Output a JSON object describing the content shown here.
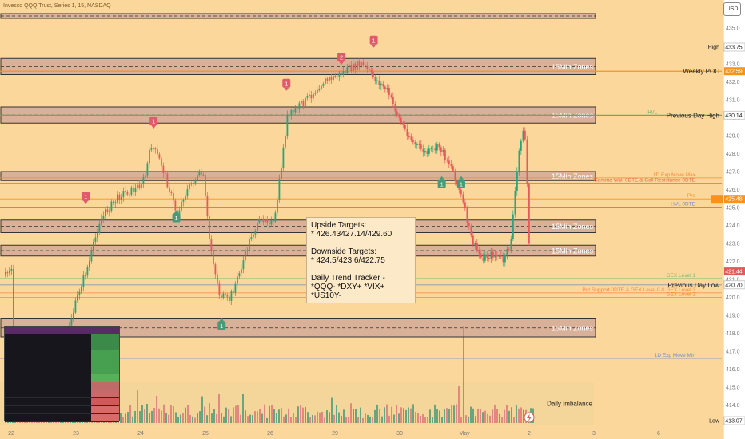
{
  "header": {
    "symbol_title": "Invesco QQQ Trust, Series 1, 15, NASDAQ",
    "currency_button": "USD"
  },
  "chart_data": {
    "type": "candlestick",
    "symbol": "QQQ",
    "interval": "15",
    "ylim": [
      412.9,
      435.6
    ],
    "y_ticks": [
      413,
      414,
      415,
      416,
      417,
      418,
      419,
      420,
      421,
      422,
      423,
      424,
      425,
      426,
      427,
      428,
      429,
      430,
      431,
      432,
      433,
      434,
      435
    ],
    "x_ticks": [
      {
        "label": "22",
        "x": 0
      },
      {
        "label": "23",
        "x": 1
      },
      {
        "label": "24",
        "x": 2
      },
      {
        "label": "25",
        "x": 3
      },
      {
        "label": "26",
        "x": 4
      },
      {
        "label": "29",
        "x": 5
      },
      {
        "label": "30",
        "x": 6
      },
      {
        "label": "May",
        "x": 7
      },
      {
        "label": "2",
        "x": 8
      },
      {
        "label": "3",
        "x": 9
      },
      {
        "label": "6",
        "x": 10
      }
    ],
    "price_path": [
      [
        0.0,
        413.8
      ],
      [
        0.2,
        414.0
      ],
      [
        0.4,
        415.2
      ],
      [
        0.6,
        416.0
      ],
      [
        0.8,
        417.5
      ],
      [
        0.95,
        419.2
      ],
      [
        1.05,
        420.5
      ],
      [
        1.2,
        422.0
      ],
      [
        1.35,
        424.2
      ],
      [
        1.5,
        425.0
      ],
      [
        1.7,
        425.8
      ],
      [
        1.9,
        426.0
      ],
      [
        2.05,
        426.6
      ],
      [
        2.15,
        428.5
      ],
      [
        2.3,
        427.5
      ],
      [
        2.45,
        425.8
      ],
      [
        2.55,
        424.6
      ],
      [
        2.65,
        425.6
      ],
      [
        2.8,
        426.5
      ],
      [
        2.95,
        426.9
      ],
      [
        3.05,
        423.2
      ],
      [
        3.2,
        420.2
      ],
      [
        3.35,
        419.8
      ],
      [
        3.5,
        421.2
      ],
      [
        3.7,
        423.5
      ],
      [
        3.9,
        424.5
      ],
      [
        4.05,
        424.0
      ],
      [
        4.15,
        427.0
      ],
      [
        4.25,
        430.0
      ],
      [
        4.4,
        430.5
      ],
      [
        4.6,
        431.2
      ],
      [
        4.8,
        432.0
      ],
      [
        5.0,
        432.3
      ],
      [
        5.2,
        432.7
      ],
      [
        5.4,
        433.0
      ],
      [
        5.6,
        432.2
      ],
      [
        5.8,
        431.5
      ],
      [
        6.0,
        429.8
      ],
      [
        6.2,
        428.6
      ],
      [
        6.4,
        428.0
      ],
      [
        6.6,
        428.4
      ],
      [
        6.8,
        427.2
      ],
      [
        6.95,
        425.5
      ],
      [
        7.1,
        423.2
      ],
      [
        7.25,
        422.2
      ],
      [
        7.45,
        422.4
      ],
      [
        7.6,
        422.0
      ],
      [
        7.7,
        423.0
      ],
      [
        7.85,
        428.8
      ],
      [
        7.92,
        429.3
      ],
      [
        7.97,
        425.2
      ],
      [
        8.0,
        421.4
      ]
    ],
    "current_price": 421.44,
    "last_price_label": "421.44",
    "high": {
      "label": "High",
      "value": 433.75,
      "text": "433.75"
    },
    "low": {
      "label": "Low",
      "value": 413.07,
      "text": "413.07"
    },
    "zones": [
      {
        "label": "15Min Zones",
        "top": 435.8,
        "bottom": 435.6
      },
      {
        "label": "15Min Zones",
        "top": 433.3,
        "bottom": 432.4
      },
      {
        "label": "15Min Zones",
        "top": 430.6,
        "bottom": 429.7
      },
      {
        "label": "15Min Zones",
        "top": 427.0,
        "bottom": 426.5
      },
      {
        "label": "15Min Zones",
        "top": 424.3,
        "bottom": 423.6
      },
      {
        "label": "15Min Zones",
        "top": 422.9,
        "bottom": 422.3
      },
      {
        "label": "15Min Zones",
        "top": 418.8,
        "bottom": 417.8
      }
    ],
    "levels": [
      {
        "label": "Weekly POC",
        "value": 432.59,
        "price_text": "432.59",
        "color": "#f7931a",
        "tag": true
      },
      {
        "label": "Previous Day High",
        "value": 430.14,
        "price_text": "430.14",
        "color": "#6aaa6a",
        "tag": false
      },
      {
        "label": "1D Exp Move Max",
        "value": 426.65,
        "color": "#f58a3a"
      },
      {
        "label": "Gamma Wall 0DTE & Call Resistance 0DTE",
        "value": 426.35,
        "color": "#e86a4a"
      },
      {
        "label": "Pre",
        "value": 425.48,
        "price_text": "425.48",
        "color": "#f7931a",
        "tag": true
      },
      {
        "label": "HVL 0DTE",
        "value": 425.02,
        "color": "#7a8ac8"
      },
      {
        "label": "GEX Level 1",
        "value": 421.05,
        "color": "#7ab87a"
      },
      {
        "label": "Previous Day Low",
        "value": 420.7,
        "price_text": "420.70",
        "color": "#aaaaaa",
        "tag": false
      },
      {
        "label": "Put Support 0DTE & GEX Level 0 & GEX Level 3",
        "value": 420.25,
        "color": "#f58a3a"
      },
      {
        "label": "GEX Level 2",
        "value": 420.0,
        "color": "#f58a3a"
      },
      {
        "label": "1D Exp Move Min",
        "value": 416.6,
        "color": "#7a8ac8"
      },
      {
        "label": "Daily Imbalance",
        "value": 414.0,
        "color": "#555555"
      }
    ],
    "hvl_mark": "HVL",
    "annotation": {
      "upside_title": "Upside Targets:",
      "upside_values": "* 426.43427.14/429.60",
      "downside_title": "Downside Targets:",
      "downside_values": "* 424.5/423.6/422.75",
      "tracker_title": "Daily Trend Tracker -",
      "tracker_values": "*QQQ-  *DXY+  *VIX+  *US10Y-"
    },
    "markers": [
      {
        "text": "1",
        "x": 1.15,
        "y": 425.6,
        "color": "#e05a6a",
        "dir": "down"
      },
      {
        "text": "1",
        "x": 2.2,
        "y": 429.8,
        "color": "#e05a6a",
        "dir": "down"
      },
      {
        "text": "1",
        "x": 4.25,
        "y": 431.9,
        "color": "#e05a6a",
        "dir": "down"
      },
      {
        "text": "2",
        "x": 5.1,
        "y": 433.35,
        "color": "#e05a6a",
        "dir": "down"
      },
      {
        "text": "1",
        "x": 5.6,
        "y": 434.3,
        "color": "#e05a6a",
        "dir": "down"
      },
      {
        "text": "1",
        "x": 2.55,
        "y": 424.4,
        "color": "#4a9a7a",
        "dir": "up"
      },
      {
        "text": "1",
        "x": 6.65,
        "y": 426.3,
        "color": "#4a9a7a",
        "dir": "up"
      },
      {
        "text": "1",
        "x": 6.95,
        "y": 426.3,
        "color": "#4a9a7a",
        "dir": "up"
      },
      {
        "text": "1",
        "x": 3.25,
        "y": 418.4,
        "color": "#4a9a7a",
        "dir": "up"
      }
    ]
  }
}
